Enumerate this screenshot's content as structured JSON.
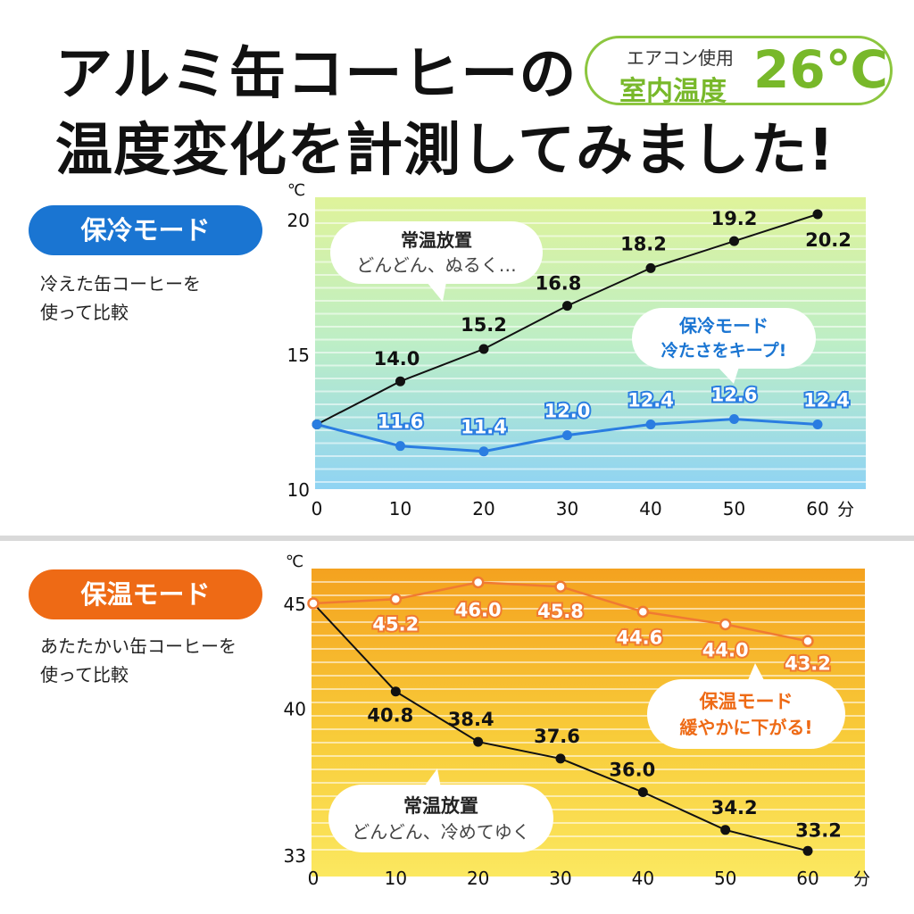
{
  "header": {
    "title_line1": "アルミ缶コーヒーの",
    "title_line2": "温度変化を計測してみました!",
    "aircon_line1": "エアコン使用",
    "aircon_line2": "室内温度",
    "aircon_temp": "26℃"
  },
  "cool_section": {
    "mode_label": "保冷モード",
    "desc_line1": "冷えた缶コーヒーを",
    "desc_line2": "使って比較",
    "bubble_normal_line1": "常温放置",
    "bubble_normal_line2": "どんどん、ぬるく…",
    "bubble_mode_line1": "保冷モード",
    "bubble_mode_line2": "冷たさをキープ!"
  },
  "warm_section": {
    "mode_label": "保温モード",
    "desc_line1": "あたたかい缶コーヒーを",
    "desc_line2": "使って比較",
    "bubble_normal_line1": "常温放置",
    "bubble_normal_line2": "どんどん、冷めてゆく",
    "bubble_mode_line1": "保温モード",
    "bubble_mode_line2": "緩やかに下がる!"
  },
  "colors": {
    "cool_accent": "#1a75d2",
    "warm_accent": "#ee6a15",
    "aircon_green": "#78b82a",
    "normal_line": "#111111",
    "cool_mode_line": "#2a7de1",
    "warm_mode_line": "#f07a32"
  },
  "chart_data": [
    {
      "type": "line",
      "y_unit": "℃",
      "x_unit": "分",
      "x": [
        0,
        10,
        20,
        30,
        40,
        50,
        60
      ],
      "ylim": [
        10,
        21
      ],
      "yticks": [
        10,
        15,
        20
      ],
      "grid": true,
      "series": [
        {
          "values": [
            12.4,
            14.0,
            15.2,
            16.8,
            18.2,
            19.2,
            20.2
          ],
          "labels": [
            "",
            "14.0",
            "15.2",
            "16.8",
            "18.2",
            "19.2",
            "20.2"
          ]
        },
        {
          "values": [
            12.4,
            11.6,
            11.4,
            12.0,
            12.4,
            12.6,
            12.4
          ],
          "labels": [
            "",
            "11.6",
            "11.4",
            "12.0",
            "12.4",
            "12.6",
            "12.4"
          ]
        }
      ]
    },
    {
      "type": "line",
      "y_unit": "℃",
      "x_unit": "分",
      "x": [
        0,
        10,
        20,
        30,
        40,
        50,
        60
      ],
      "ylim": [
        33,
        47
      ],
      "yticks": [
        33,
        40,
        45
      ],
      "grid": true,
      "series": [
        {
          "values": [
            45.0,
            40.8,
            38.4,
            37.6,
            36.0,
            34.2,
            33.2
          ],
          "labels": [
            "",
            "40.8",
            "38.4",
            "37.6",
            "36.0",
            "34.2",
            "33.2"
          ]
        },
        {
          "values": [
            45.0,
            45.2,
            46.0,
            45.8,
            44.6,
            44.0,
            43.2
          ],
          "labels": [
            "",
            "45.2",
            "46.0",
            "45.8",
            "44.6",
            "44.0",
            "43.2"
          ]
        }
      ]
    }
  ]
}
